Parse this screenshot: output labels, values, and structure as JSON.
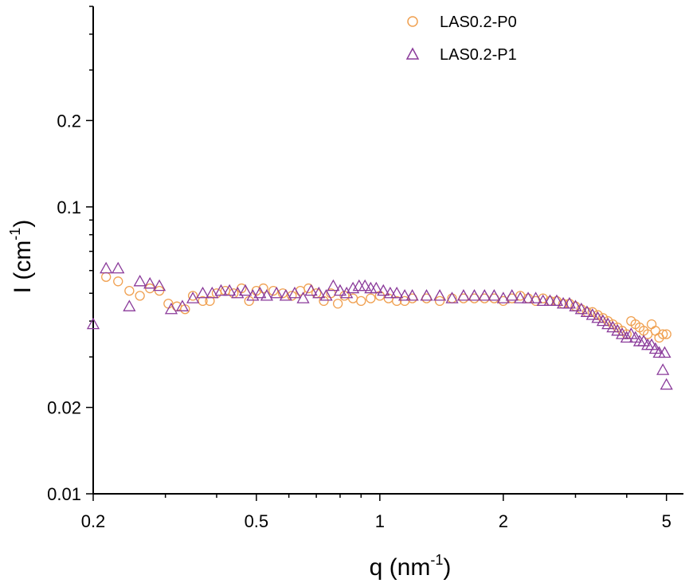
{
  "chart_data": {
    "type": "scatter",
    "x_scale": "log",
    "y_scale": "log",
    "xlim": [
      0.2,
      5.5
    ],
    "ylim": [
      0.01,
      0.5
    ],
    "x_ticks": [
      0.2,
      0.5,
      1,
      2,
      5
    ],
    "x_tick_labels": [
      "0.2",
      "0.5",
      "1",
      "2",
      "5"
    ],
    "y_ticks": [
      0.01,
      0.02,
      0.1,
      0.2
    ],
    "y_tick_labels": [
      "0.01",
      "0.02",
      "0.1",
      "0.2"
    ],
    "xlabel": {
      "base": "q (nm",
      "sup": "-1",
      "close": ")"
    },
    "ylabel": {
      "base": "I (cm",
      "sup": "-1",
      "close": ")"
    },
    "grid": false,
    "legend_position": "top-right",
    "series": [
      {
        "name": "LAS0.2-P0",
        "marker": "circle",
        "color": "#f0a050",
        "points": [
          [
            0.215,
            0.057
          ],
          [
            0.23,
            0.055
          ],
          [
            0.245,
            0.051
          ],
          [
            0.26,
            0.049
          ],
          [
            0.275,
            0.052
          ],
          [
            0.29,
            0.051
          ],
          [
            0.305,
            0.046
          ],
          [
            0.32,
            0.045
          ],
          [
            0.335,
            0.044
          ],
          [
            0.35,
            0.049
          ],
          [
            0.37,
            0.047
          ],
          [
            0.385,
            0.047
          ],
          [
            0.4,
            0.05
          ],
          [
            0.42,
            0.051
          ],
          [
            0.44,
            0.05
          ],
          [
            0.46,
            0.052
          ],
          [
            0.48,
            0.047
          ],
          [
            0.5,
            0.051
          ],
          [
            0.52,
            0.052
          ],
          [
            0.55,
            0.051
          ],
          [
            0.58,
            0.05
          ],
          [
            0.61,
            0.049
          ],
          [
            0.64,
            0.051
          ],
          [
            0.67,
            0.052
          ],
          [
            0.7,
            0.05
          ],
          [
            0.73,
            0.047
          ],
          [
            0.76,
            0.05
          ],
          [
            0.79,
            0.046
          ],
          [
            0.82,
            0.049
          ],
          [
            0.86,
            0.048
          ],
          [
            0.9,
            0.047
          ],
          [
            0.95,
            0.048
          ],
          [
            1.0,
            0.049
          ],
          [
            1.05,
            0.048
          ],
          [
            1.1,
            0.047
          ],
          [
            1.15,
            0.047
          ],
          [
            1.2,
            0.048
          ],
          [
            1.3,
            0.048
          ],
          [
            1.4,
            0.047
          ],
          [
            1.5,
            0.048
          ],
          [
            1.6,
            0.048
          ],
          [
            1.7,
            0.048
          ],
          [
            1.8,
            0.048
          ],
          [
            1.9,
            0.048
          ],
          [
            2.0,
            0.047
          ],
          [
            2.1,
            0.048
          ],
          [
            2.2,
            0.049
          ],
          [
            2.3,
            0.048
          ],
          [
            2.4,
            0.047
          ],
          [
            2.5,
            0.048
          ],
          [
            2.6,
            0.047
          ],
          [
            2.7,
            0.047
          ],
          [
            2.8,
            0.046
          ],
          [
            2.9,
            0.046
          ],
          [
            3.0,
            0.045
          ],
          [
            3.1,
            0.044
          ],
          [
            3.2,
            0.043
          ],
          [
            3.3,
            0.043
          ],
          [
            3.4,
            0.042
          ],
          [
            3.5,
            0.041
          ],
          [
            3.6,
            0.04
          ],
          [
            3.7,
            0.039
          ],
          [
            3.8,
            0.038
          ],
          [
            3.9,
            0.037
          ],
          [
            4.0,
            0.036
          ],
          [
            4.1,
            0.04
          ],
          [
            4.2,
            0.039
          ],
          [
            4.3,
            0.038
          ],
          [
            4.4,
            0.037
          ],
          [
            4.5,
            0.036
          ],
          [
            4.6,
            0.039
          ],
          [
            4.7,
            0.037
          ],
          [
            4.8,
            0.035
          ],
          [
            4.9,
            0.036
          ],
          [
            5.0,
            0.036
          ]
        ]
      },
      {
        "name": "LAS0.2-P1",
        "marker": "triangle",
        "color": "#8a3a9a",
        "points": [
          [
            0.2,
            0.039
          ],
          [
            0.215,
            0.061
          ],
          [
            0.23,
            0.061
          ],
          [
            0.245,
            0.045
          ],
          [
            0.26,
            0.055
          ],
          [
            0.275,
            0.054
          ],
          [
            0.29,
            0.053
          ],
          [
            0.31,
            0.044
          ],
          [
            0.33,
            0.045
          ],
          [
            0.35,
            0.048
          ],
          [
            0.37,
            0.05
          ],
          [
            0.39,
            0.05
          ],
          [
            0.41,
            0.051
          ],
          [
            0.43,
            0.051
          ],
          [
            0.45,
            0.05
          ],
          [
            0.47,
            0.051
          ],
          [
            0.49,
            0.049
          ],
          [
            0.51,
            0.05
          ],
          [
            0.53,
            0.049
          ],
          [
            0.56,
            0.05
          ],
          [
            0.59,
            0.049
          ],
          [
            0.62,
            0.05
          ],
          [
            0.65,
            0.048
          ],
          [
            0.68,
            0.051
          ],
          [
            0.71,
            0.05
          ],
          [
            0.74,
            0.049
          ],
          [
            0.77,
            0.053
          ],
          [
            0.8,
            0.051
          ],
          [
            0.83,
            0.05
          ],
          [
            0.86,
            0.052
          ],
          [
            0.89,
            0.053
          ],
          [
            0.92,
            0.053
          ],
          [
            0.95,
            0.052
          ],
          [
            0.98,
            0.052
          ],
          [
            1.02,
            0.051
          ],
          [
            1.06,
            0.05
          ],
          [
            1.1,
            0.05
          ],
          [
            1.15,
            0.049
          ],
          [
            1.2,
            0.049
          ],
          [
            1.3,
            0.049
          ],
          [
            1.4,
            0.049
          ],
          [
            1.5,
            0.048
          ],
          [
            1.6,
            0.049
          ],
          [
            1.7,
            0.049
          ],
          [
            1.8,
            0.049
          ],
          [
            1.9,
            0.049
          ],
          [
            2.0,
            0.048
          ],
          [
            2.1,
            0.049
          ],
          [
            2.2,
            0.048
          ],
          [
            2.3,
            0.048
          ],
          [
            2.4,
            0.048
          ],
          [
            2.5,
            0.047
          ],
          [
            2.6,
            0.047
          ],
          [
            2.7,
            0.047
          ],
          [
            2.8,
            0.046
          ],
          [
            2.9,
            0.046
          ],
          [
            3.0,
            0.045
          ],
          [
            3.1,
            0.044
          ],
          [
            3.2,
            0.043
          ],
          [
            3.3,
            0.042
          ],
          [
            3.4,
            0.041
          ],
          [
            3.5,
            0.04
          ],
          [
            3.6,
            0.039
          ],
          [
            3.7,
            0.038
          ],
          [
            3.8,
            0.037
          ],
          [
            3.9,
            0.036
          ],
          [
            4.0,
            0.035
          ],
          [
            4.1,
            0.036
          ],
          [
            4.2,
            0.035
          ],
          [
            4.3,
            0.034
          ],
          [
            4.4,
            0.034
          ],
          [
            4.5,
            0.033
          ],
          [
            4.6,
            0.033
          ],
          [
            4.7,
            0.032
          ],
          [
            4.8,
            0.031
          ],
          [
            4.9,
            0.027
          ],
          [
            4.95,
            0.031
          ],
          [
            5.0,
            0.024
          ]
        ]
      }
    ]
  }
}
